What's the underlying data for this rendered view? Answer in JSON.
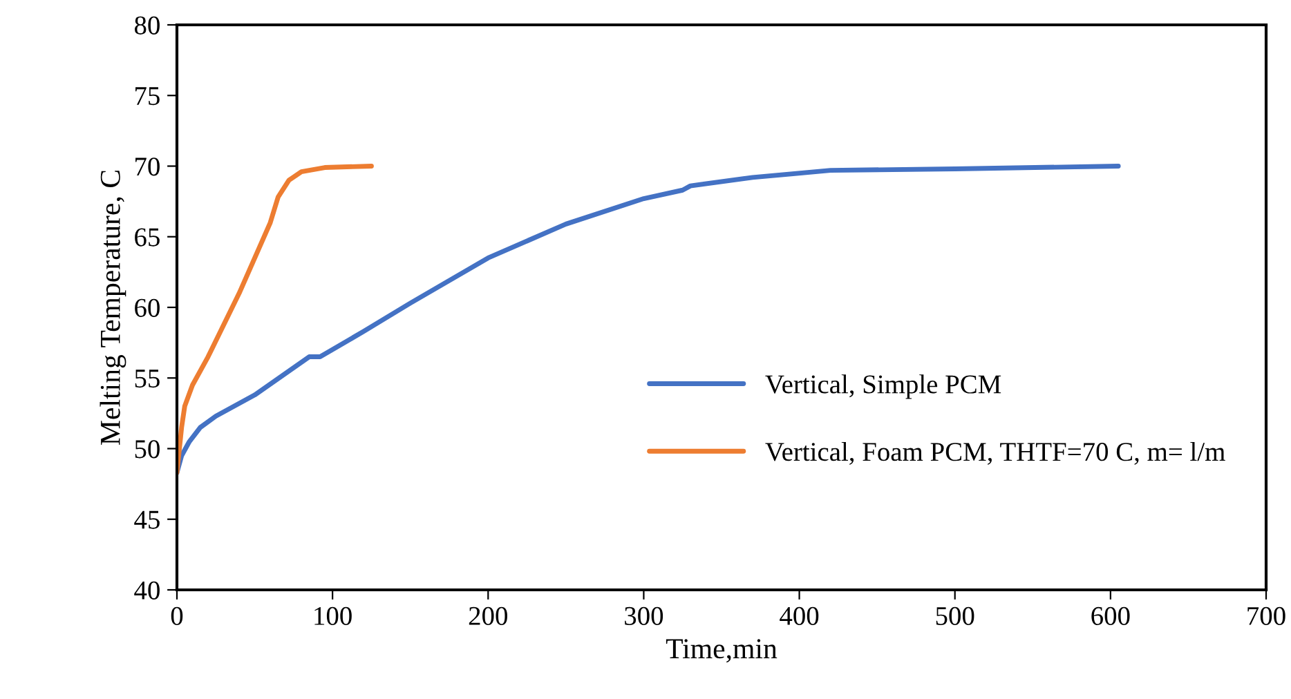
{
  "chart_data": {
    "type": "line",
    "xlabel": "Time,min",
    "ylabel": "Melting Temperature, C",
    "xlim": [
      0,
      700
    ],
    "xticks": [
      0,
      100,
      200,
      300,
      400,
      500,
      600,
      700
    ],
    "ylim": [
      40,
      80
    ],
    "yticks": [
      40,
      45,
      50,
      55,
      60,
      65,
      70,
      75,
      80
    ],
    "grid": false,
    "legend": "right",
    "marker": "none",
    "line_style": "solid",
    "series": [
      {
        "name": "Vertical, Simple PCM",
        "color": "#4472c4",
        "x": [
          0,
          3,
          8,
          15,
          25,
          50,
          85,
          92,
          120,
          150,
          200,
          250,
          300,
          325,
          330,
          370,
          420,
          500,
          605
        ],
        "values": [
          48.3,
          49.5,
          50.5,
          51.5,
          52.3,
          53.8,
          56.5,
          56.5,
          58.3,
          60.3,
          63.5,
          65.9,
          67.7,
          68.3,
          68.6,
          69.2,
          69.7,
          69.8,
          70
        ]
      },
      {
        "name": "Vertical, Foam PCM, THTF=70 C, m= l/m",
        "color": "#ed7d31",
        "x": [
          0,
          3,
          5,
          10,
          20,
          40,
          60,
          65,
          72,
          80,
          95,
          125
        ],
        "values": [
          48.3,
          51.5,
          53,
          54.5,
          56.5,
          61,
          66,
          67.8,
          69,
          69.6,
          69.9,
          70
        ]
      }
    ]
  }
}
